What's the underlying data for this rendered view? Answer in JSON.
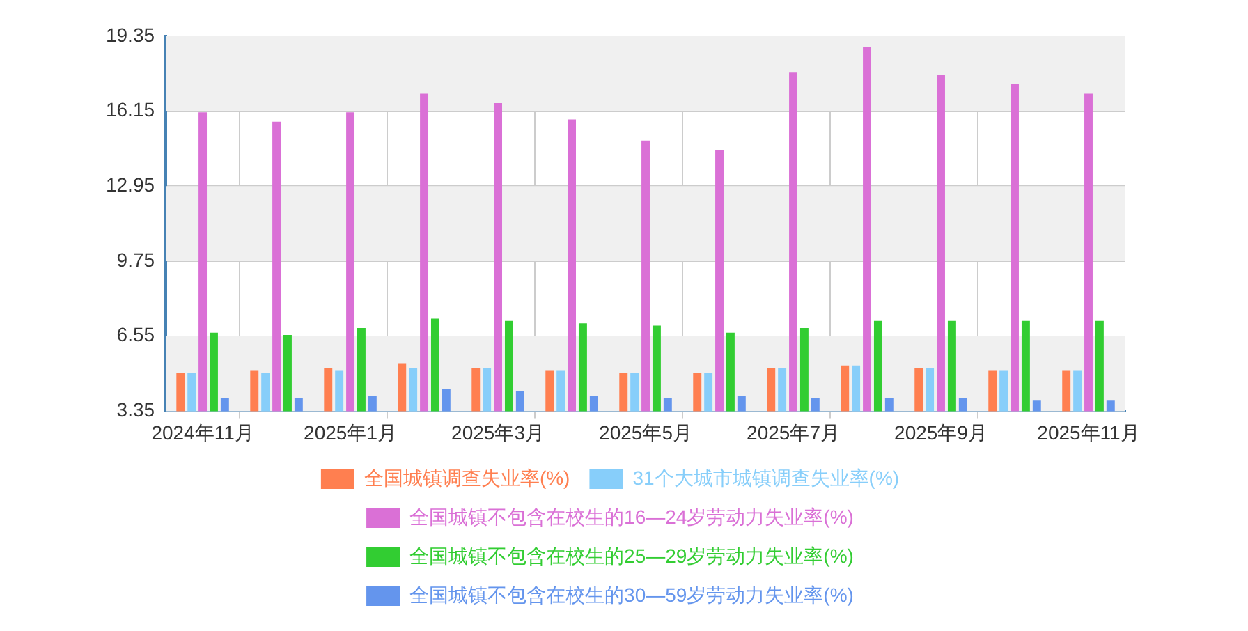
{
  "chart_data": {
    "type": "bar",
    "categories": [
      "2024年11月",
      null,
      "2025年1月",
      null,
      "2025年3月",
      null,
      "2025年5月",
      null,
      "2025年7月",
      null,
      "2025年9月",
      null,
      "2025年11月"
    ],
    "series": [
      {
        "name": "全国城镇调查失业率(%)",
        "color": "#ff7f50",
        "values": [
          5.0,
          5.1,
          5.2,
          5.4,
          5.2,
          5.1,
          5.0,
          5.0,
          5.2,
          5.3,
          5.2,
          5.1,
          5.1
        ]
      },
      {
        "name": "31个大城市城镇调查失业率(%)",
        "color": "#87cefa",
        "values": [
          5.0,
          5.0,
          5.1,
          5.2,
          5.2,
          5.1,
          5.0,
          5.0,
          5.2,
          5.3,
          5.2,
          5.1,
          5.1
        ]
      },
      {
        "name": "全国城镇不包含在校生的16—24岁劳动力失业率(%)",
        "color": "#da70d6",
        "values": [
          16.1,
          15.7,
          16.1,
          16.9,
          16.5,
          15.8,
          14.9,
          14.5,
          17.8,
          18.9,
          17.7,
          17.3,
          16.9
        ]
      },
      {
        "name": "全国城镇不包含在校生的25—29岁劳动力失业率(%)",
        "color": "#32cd32",
        "values": [
          6.7,
          6.6,
          6.9,
          7.3,
          7.2,
          7.1,
          7.0,
          6.7,
          6.9,
          7.2,
          7.2,
          7.2,
          7.2
        ]
      },
      {
        "name": "全国城镇不包含在校生的30—59岁劳动力失业率(%)",
        "color": "#6495ed",
        "values": [
          3.9,
          3.9,
          4.0,
          4.3,
          4.2,
          4.0,
          3.9,
          4.0,
          3.9,
          3.9,
          3.9,
          3.8,
          3.8
        ]
      }
    ],
    "ylim": [
      3.35,
      19.35
    ],
    "yticks": [
      3.35,
      6.55,
      9.75,
      12.95,
      16.15,
      19.35
    ],
    "grid": true,
    "legend": "bottom"
  }
}
